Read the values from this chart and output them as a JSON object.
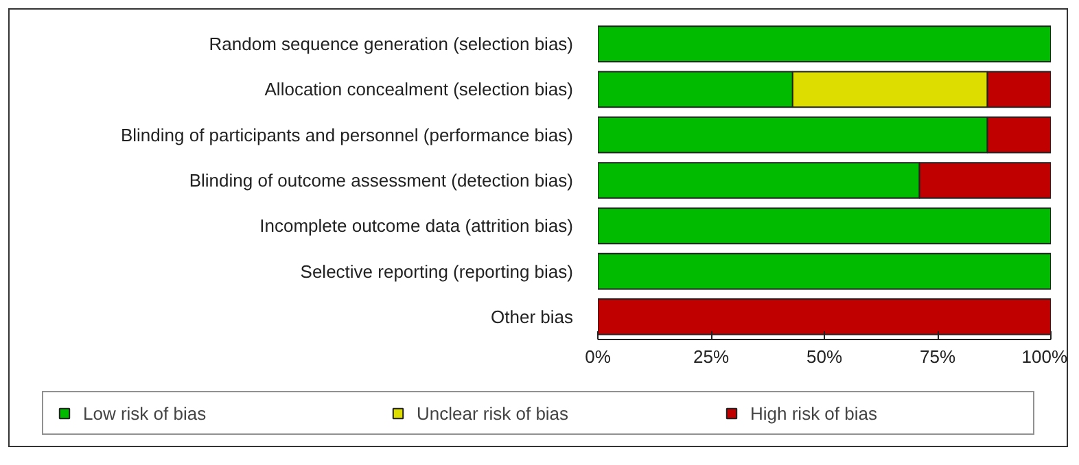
{
  "chart_data": {
    "type": "bar",
    "orientation": "horizontal",
    "stacked": true,
    "categories": [
      "Random sequence generation (selection bias)",
      "Allocation concealment (selection bias)",
      "Blinding of participants and personnel (performance bias)",
      "Blinding of outcome assessment (detection bias)",
      "Incomplete outcome data (attrition bias)",
      "Selective reporting (reporting bias)",
      "Other bias"
    ],
    "series": [
      {
        "name": "Low risk of bias",
        "color": "#00bb00",
        "values": [
          100,
          43,
          86,
          71,
          100,
          100,
          0
        ]
      },
      {
        "name": "Unclear risk of bias",
        "color": "#dddd00",
        "values": [
          0,
          43,
          0,
          0,
          0,
          0,
          0
        ]
      },
      {
        "name": "High risk of bias",
        "color": "#c00000",
        "values": [
          0,
          14,
          14,
          29,
          0,
          0,
          100
        ]
      }
    ],
    "xlim": [
      0,
      100
    ],
    "xticks": [
      {
        "value": 0,
        "label": "0%"
      },
      {
        "value": 25,
        "label": "25%"
      },
      {
        "value": 50,
        "label": "50%"
      },
      {
        "value": 75,
        "label": "75%"
      },
      {
        "value": 100,
        "label": "100%"
      }
    ],
    "grid": false,
    "legend": "bottom"
  }
}
